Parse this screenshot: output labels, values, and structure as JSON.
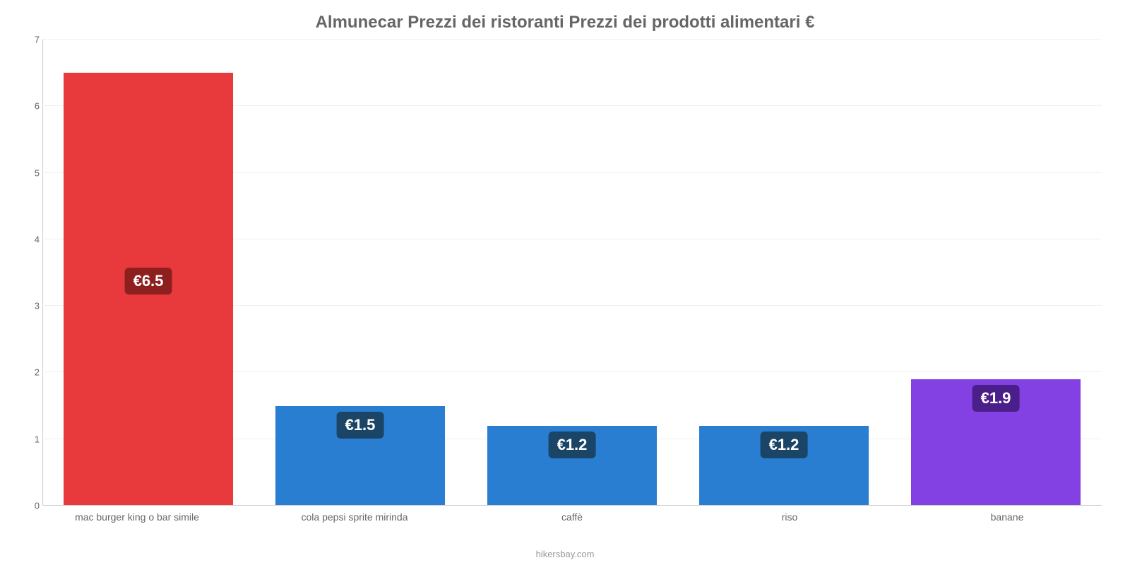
{
  "chart": {
    "type": "bar",
    "title": "Almunecar Prezzi dei ristoranti Prezzi dei prodotti alimentari €",
    "title_fontsize": 24,
    "title_color": "#666666",
    "credit": "hikersbay.com",
    "credit_color": "#999999",
    "background_color": "#ffffff",
    "grid_color": "#f2f0f0",
    "axis_line_color": "#cccccc",
    "axis_label_color": "#666666",
    "axis_label_fontsize": 13,
    "xlabel_fontsize": 14,
    "ylim": [
      0,
      7
    ],
    "ytick_step": 1,
    "yticks": [
      0,
      1,
      2,
      3,
      4,
      5,
      6,
      7
    ],
    "bar_width_pct": 80,
    "value_label_fontsize": 22,
    "categories": [
      "mac burger king o bar simile",
      "cola pepsi sprite mirinda",
      "caffè",
      "riso",
      "banane"
    ],
    "values": [
      6.5,
      1.5,
      1.2,
      1.2,
      1.9
    ],
    "value_labels": [
      "€6.5",
      "€1.5",
      "€1.2",
      "€1.2",
      "€1.9"
    ],
    "bar_colors": [
      "#e8393c",
      "#2a7ed2",
      "#2a7ed2",
      "#2a7ed2",
      "#8340e2"
    ],
    "badge_colors": [
      "#8e1f1f",
      "#1a4566",
      "#1a4566",
      "#1a4566",
      "#4a1f8a"
    ],
    "badge_text_color": "#ffffff"
  }
}
